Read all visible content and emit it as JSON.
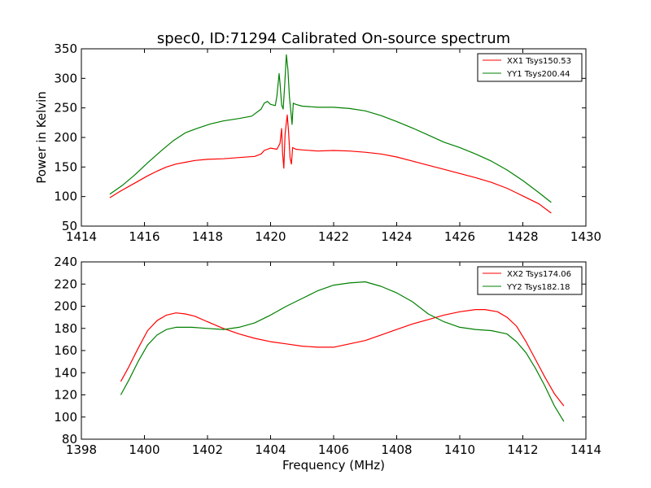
{
  "figure": {
    "title": "spec0, ID:71294 Calibrated On-source spectrum",
    "xlabel": "Frequency (MHz)",
    "ylabel_top": "Power in Kelvin"
  },
  "colors": {
    "red": "#ff0000",
    "green": "#008000"
  },
  "chart_data": [
    {
      "type": "line",
      "title": "spec0, ID:71294 Calibrated On-source spectrum",
      "xlabel": "",
      "ylabel": "Power in Kelvin",
      "xlim": [
        1414,
        1430
      ],
      "ylim": [
        50,
        350
      ],
      "xticks": [
        1414,
        1416,
        1418,
        1420,
        1422,
        1424,
        1426,
        1428,
        1430
      ],
      "yticks": [
        50,
        100,
        150,
        200,
        250,
        300,
        350
      ],
      "legend": "top-right",
      "grid": false,
      "series": [
        {
          "name": "XX1 Tsys150.53",
          "color": "#ff0000",
          "points": [
            [
              1414.9,
              98
            ],
            [
              1415.2,
              108
            ],
            [
              1415.5,
              117
            ],
            [
              1415.8,
              126
            ],
            [
              1416.1,
              135
            ],
            [
              1416.4,
              143
            ],
            [
              1416.7,
              150
            ],
            [
              1417.0,
              155
            ],
            [
              1417.3,
              158
            ],
            [
              1417.6,
              161
            ],
            [
              1418.0,
              163
            ],
            [
              1418.5,
              164
            ],
            [
              1419.0,
              166
            ],
            [
              1419.5,
              168
            ],
            [
              1419.7,
              172
            ],
            [
              1419.8,
              178
            ],
            [
              1420.0,
              182
            ],
            [
              1420.2,
              180
            ],
            [
              1420.3,
              190
            ],
            [
              1420.35,
              215
            ],
            [
              1420.38,
              175
            ],
            [
              1420.42,
              148
            ],
            [
              1420.46,
              205
            ],
            [
              1420.5,
              225
            ],
            [
              1420.53,
              238
            ],
            [
              1420.57,
              210
            ],
            [
              1420.62,
              165
            ],
            [
              1420.66,
              155
            ],
            [
              1420.7,
              183
            ],
            [
              1420.8,
              180
            ],
            [
              1421.0,
              179
            ],
            [
              1421.5,
              177
            ],
            [
              1422.0,
              178
            ],
            [
              1422.5,
              177
            ],
            [
              1423.0,
              175
            ],
            [
              1423.5,
              172
            ],
            [
              1424.0,
              167
            ],
            [
              1424.5,
              160
            ],
            [
              1425.0,
              153
            ],
            [
              1425.5,
              146
            ],
            [
              1426.0,
              139
            ],
            [
              1426.5,
              132
            ],
            [
              1427.0,
              124
            ],
            [
              1427.5,
              114
            ],
            [
              1428.0,
              101
            ],
            [
              1428.5,
              88
            ],
            [
              1428.9,
              72
            ]
          ]
        },
        {
          "name": "YY1 Tsys200.44",
          "color": "#008000",
          "points": [
            [
              1414.9,
              104
            ],
            [
              1415.3,
              119
            ],
            [
              1415.7,
              137
            ],
            [
              1416.1,
              157
            ],
            [
              1416.5,
              176
            ],
            [
              1416.9,
              194
            ],
            [
              1417.3,
              208
            ],
            [
              1417.7,
              216
            ],
            [
              1418.1,
              223
            ],
            [
              1418.5,
              228
            ],
            [
              1419.0,
              232
            ],
            [
              1419.4,
              236
            ],
            [
              1419.7,
              248
            ],
            [
              1419.8,
              258
            ],
            [
              1419.9,
              261
            ],
            [
              1420.0,
              256
            ],
            [
              1420.15,
              254
            ],
            [
              1420.2,
              270
            ],
            [
              1420.27,
              308
            ],
            [
              1420.3,
              292
            ],
            [
              1420.35,
              255
            ],
            [
              1420.4,
              248
            ],
            [
              1420.45,
              290
            ],
            [
              1420.5,
              340
            ],
            [
              1420.55,
              315
            ],
            [
              1420.6,
              268
            ],
            [
              1420.65,
              240
            ],
            [
              1420.68,
              222
            ],
            [
              1420.72,
              258
            ],
            [
              1420.8,
              256
            ],
            [
              1421.0,
              253
            ],
            [
              1421.5,
              251
            ],
            [
              1422.0,
              251
            ],
            [
              1422.5,
              249
            ],
            [
              1423.0,
              245
            ],
            [
              1423.5,
              237
            ],
            [
              1424.0,
              227
            ],
            [
              1424.5,
              216
            ],
            [
              1425.0,
              204
            ],
            [
              1425.5,
              192
            ],
            [
              1426.0,
              183
            ],
            [
              1426.5,
              172
            ],
            [
              1427.0,
              160
            ],
            [
              1427.5,
              145
            ],
            [
              1428.0,
              127
            ],
            [
              1428.5,
              107
            ],
            [
              1428.9,
              90
            ]
          ]
        }
      ]
    },
    {
      "type": "line",
      "title": "",
      "xlabel": "Frequency (MHz)",
      "ylabel": "",
      "xlim": [
        1398,
        1414
      ],
      "ylim": [
        80,
        240
      ],
      "xticks": [
        1398,
        1400,
        1402,
        1404,
        1406,
        1408,
        1410,
        1412,
        1414
      ],
      "yticks": [
        80,
        100,
        120,
        140,
        160,
        180,
        200,
        220,
        240
      ],
      "legend": "top-right",
      "grid": false,
      "series": [
        {
          "name": "XX2 Tsys174.06",
          "color": "#ff0000",
          "points": [
            [
              1399.25,
              132
            ],
            [
              1399.5,
              145
            ],
            [
              1399.8,
              162
            ],
            [
              1400.1,
              178
            ],
            [
              1400.4,
              187
            ],
            [
              1400.7,
              192
            ],
            [
              1401.0,
              194
            ],
            [
              1401.3,
              193
            ],
            [
              1401.6,
              191
            ],
            [
              1402.0,
              186
            ],
            [
              1402.5,
              180
            ],
            [
              1403.0,
              175
            ],
            [
              1403.5,
              171
            ],
            [
              1404.0,
              168
            ],
            [
              1404.5,
              166
            ],
            [
              1405.0,
              164
            ],
            [
              1405.5,
              163
            ],
            [
              1406.0,
              163
            ],
            [
              1406.5,
              166
            ],
            [
              1407.0,
              169
            ],
            [
              1407.5,
              174
            ],
            [
              1408.0,
              179
            ],
            [
              1408.5,
              184
            ],
            [
              1409.0,
              188
            ],
            [
              1409.5,
              192
            ],
            [
              1410.0,
              195
            ],
            [
              1410.5,
              197
            ],
            [
              1410.8,
              197
            ],
            [
              1411.2,
              195
            ],
            [
              1411.5,
              190
            ],
            [
              1411.8,
              182
            ],
            [
              1412.1,
              168
            ],
            [
              1412.4,
              152
            ],
            [
              1412.7,
              136
            ],
            [
              1413.0,
              121
            ],
            [
              1413.3,
              110
            ]
          ]
        },
        {
          "name": "YY2 Tsys182.18",
          "color": "#008000",
          "points": [
            [
              1399.25,
              120
            ],
            [
              1399.5,
              133
            ],
            [
              1399.8,
              150
            ],
            [
              1400.1,
              165
            ],
            [
              1400.4,
              174
            ],
            [
              1400.7,
              179
            ],
            [
              1401.0,
              181
            ],
            [
              1401.5,
              181
            ],
            [
              1402.0,
              180
            ],
            [
              1402.5,
              179
            ],
            [
              1403.0,
              181
            ],
            [
              1403.5,
              185
            ],
            [
              1404.0,
              192
            ],
            [
              1404.5,
              200
            ],
            [
              1405.0,
              207
            ],
            [
              1405.5,
              214
            ],
            [
              1406.0,
              219
            ],
            [
              1406.5,
              221
            ],
            [
              1407.0,
              222
            ],
            [
              1407.5,
              218
            ],
            [
              1408.0,
              212
            ],
            [
              1408.5,
              204
            ],
            [
              1409.0,
              193
            ],
            [
              1409.5,
              186
            ],
            [
              1410.0,
              181
            ],
            [
              1410.5,
              179
            ],
            [
              1411.0,
              178
            ],
            [
              1411.5,
              175
            ],
            [
              1411.8,
              168
            ],
            [
              1412.1,
              158
            ],
            [
              1412.4,
              144
            ],
            [
              1412.7,
              128
            ],
            [
              1413.0,
              110
            ],
            [
              1413.3,
              96
            ]
          ]
        }
      ]
    }
  ]
}
